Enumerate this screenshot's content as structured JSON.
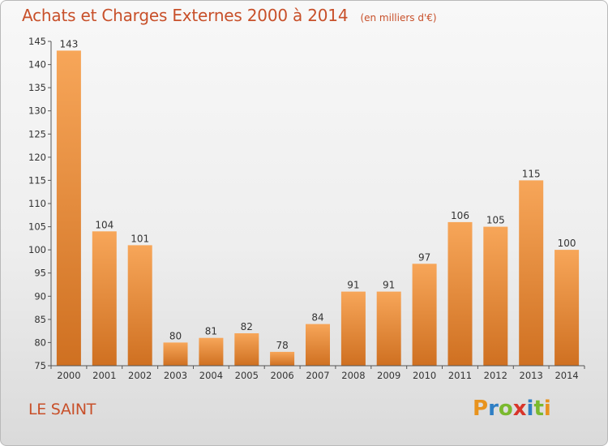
{
  "header": {
    "title": "Achats et Charges Externes 2000 à 2014",
    "subtitle": "(en milliers d'€)"
  },
  "footer": {
    "commune": "LE SAINT",
    "logo_text": "Proxiti",
    "logo_colors": [
      "#e8931e",
      "#2f7fc4",
      "#7ab92f",
      "#d8352a",
      "#2f7fc4",
      "#7ab92f",
      "#e8931e"
    ]
  },
  "chart_data": {
    "type": "bar",
    "categories": [
      "2000",
      "2001",
      "2002",
      "2003",
      "2004",
      "2005",
      "2006",
      "2007",
      "2008",
      "2009",
      "2010",
      "2011",
      "2012",
      "2013",
      "2014"
    ],
    "values": [
      143,
      104,
      101,
      80,
      81,
      82,
      78,
      84,
      91,
      91,
      97,
      106,
      105,
      115,
      100
    ],
    "ylim": [
      75,
      145
    ],
    "yticks": [
      75,
      80,
      85,
      90,
      95,
      100,
      105,
      110,
      115,
      120,
      125,
      130,
      135,
      140,
      145
    ],
    "grid": false,
    "legend": "none",
    "bar_color_top": "#f7a659",
    "bar_color_bottom": "#cf7021",
    "axis_color": "#555555"
  }
}
